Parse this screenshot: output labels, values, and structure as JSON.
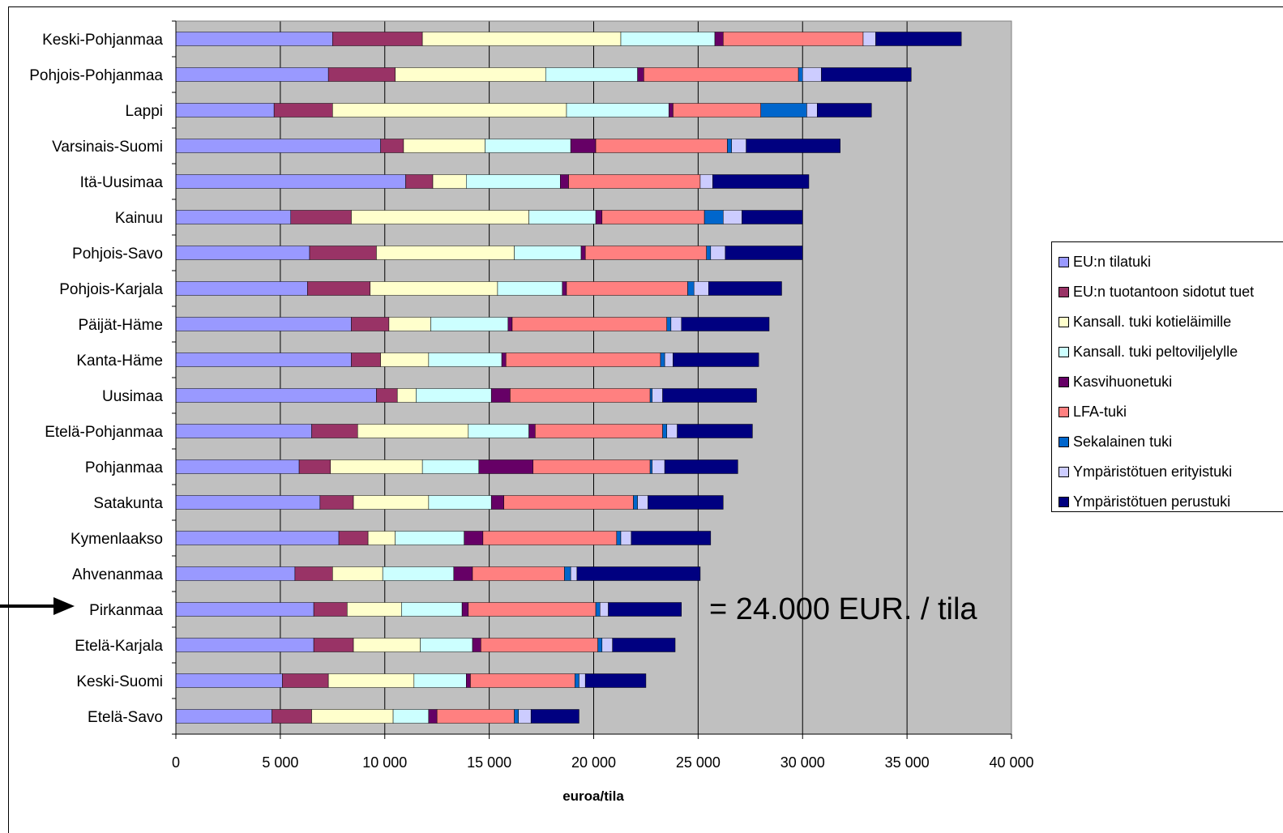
{
  "chart_data": {
    "type": "bar",
    "orientation": "horizontal",
    "stacked": true,
    "xlabel": "euroa/tila",
    "xlim": [
      0,
      40000
    ],
    "xticks": [
      0,
      5000,
      10000,
      15000,
      20000,
      25000,
      30000,
      35000,
      40000
    ],
    "xtick_labels": [
      "0",
      "5 000",
      "10 000",
      "15 000",
      "20 000",
      "25 000",
      "30 000",
      "35 000",
      "40 000"
    ],
    "grid": "vertical",
    "background": "#c0c0c0",
    "legend_position": "right",
    "categories": [
      "Keski-Pohjanmaa",
      "Pohjois-Pohjanmaa",
      "Lappi",
      "Varsinais-Suomi",
      "Itä-Uusimaa",
      "Kainuu",
      "Pohjois-Savo",
      "Pohjois-Karjala",
      "Päijät-Häme",
      "Kanta-Häme",
      "Uusimaa",
      "Etelä-Pohjanmaa",
      "Pohjanmaa",
      "Satakunta",
      "Kymenlaakso",
      "Ahvenanmaa",
      "Pirkanmaa",
      "Etelä-Karjala",
      "Keski-Suomi",
      "Etelä-Savo"
    ],
    "series": [
      {
        "name": "EU:n tilatuki",
        "color": "#9999ff",
        "values": [
          7500,
          7300,
          4700,
          9800,
          11000,
          5500,
          6400,
          6300,
          8400,
          8400,
          9600,
          6500,
          5900,
          6900,
          7800,
          5700,
          6600,
          6600,
          5100,
          4600
        ]
      },
      {
        "name": "EU:n tuotantoon sidotut tuet",
        "color": "#993366",
        "values": [
          4300,
          3200,
          2800,
          1100,
          1300,
          2900,
          3200,
          3000,
          1800,
          1400,
          1000,
          2200,
          1500,
          1600,
          1400,
          1800,
          1600,
          1900,
          2200,
          1900
        ]
      },
      {
        "name": "Kansall. tuki kotieläimille",
        "color": "#ffffcc",
        "values": [
          9500,
          7200,
          11200,
          3900,
          1600,
          8500,
          6600,
          6100,
          2000,
          2300,
          900,
          5300,
          4400,
          3600,
          1300,
          2400,
          2600,
          3200,
          4100,
          3900
        ]
      },
      {
        "name": "Kansall. tuki peltoviljelylle",
        "color": "#ccffff",
        "values": [
          4500,
          4400,
          4900,
          4100,
          4500,
          3200,
          3200,
          3100,
          3700,
          3500,
          3600,
          2900,
          2700,
          3000,
          3300,
          3400,
          2900,
          2500,
          2500,
          1700
        ]
      },
      {
        "name": "Kasvihuonetuki",
        "color": "#660066",
        "values": [
          400,
          300,
          200,
          1200,
          400,
          300,
          200,
          200,
          200,
          200,
          900,
          300,
          2600,
          600,
          900,
          900,
          300,
          400,
          200,
          400
        ]
      },
      {
        "name": "LFA-tuki",
        "color": "#ff8080",
        "values": [
          6700,
          7400,
          4200,
          6300,
          6300,
          4900,
          5800,
          5800,
          7400,
          7400,
          6700,
          6100,
          5600,
          6200,
          6400,
          4400,
          6100,
          5600,
          5000,
          3700
        ]
      },
      {
        "name": "Sekalainen tuki",
        "color": "#0066cc",
        "values": [
          0,
          200,
          2200,
          200,
          0,
          900,
          200,
          300,
          200,
          200,
          100,
          200,
          100,
          200,
          200,
          300,
          200,
          200,
          200,
          200
        ]
      },
      {
        "name": "Ympäristötuen erityistuki",
        "color": "#ccccff",
        "values": [
          600,
          900,
          500,
          700,
          600,
          900,
          700,
          700,
          500,
          400,
          500,
          500,
          600,
          500,
          500,
          300,
          400,
          500,
          300,
          600
        ]
      },
      {
        "name": "Ympäristötuen perustuki",
        "color": "#000080",
        "values": [
          4100,
          4300,
          2600,
          4500,
          4600,
          2900,
          3700,
          3500,
          4200,
          4100,
          4500,
          3600,
          3500,
          3600,
          3800,
          5900,
          3500,
          3000,
          2900,
          2300
        ]
      }
    ]
  },
  "annotation": {
    "text": "= 24.000 EUR. / tila",
    "points_to": "Pirkanmaa"
  },
  "arrow_icon": "right-arrow-icon"
}
